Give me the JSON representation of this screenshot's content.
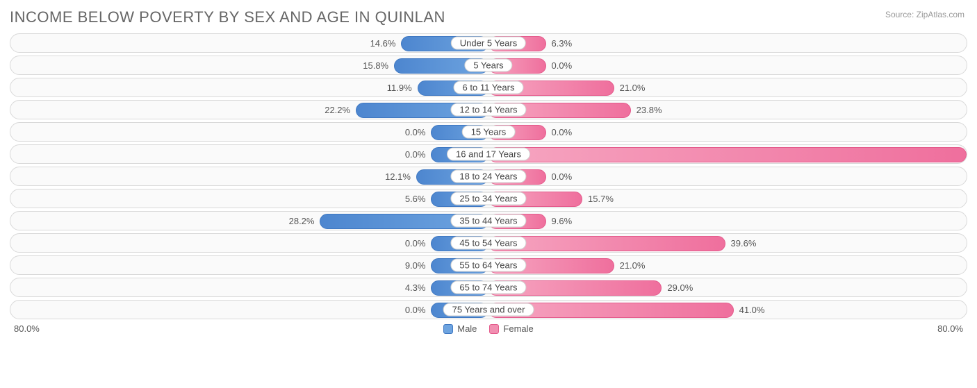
{
  "chart": {
    "title": "INCOME BELOW POVERTY BY SEX AND AGE IN QUINLAN",
    "source": "Source: ZipAtlas.com",
    "type": "diverging-bar",
    "axis_max": 80.0,
    "axis_label_left": "80.0%",
    "axis_label_right": "80.0%",
    "min_bar_pct": 12.0,
    "colors": {
      "male_bar_start": "#6ea4e0",
      "male_bar_end": "#4d86cf",
      "male_border": "#3f78c2",
      "female_bar_start": "#f6a6c1",
      "female_bar_end": "#ef6f9d",
      "female_border": "#e45b8c",
      "track_bg": "#fafafa",
      "track_border": "#d9d9d9",
      "text": "#555555",
      "title_color": "#666666"
    },
    "legend": {
      "male": "Male",
      "female": "Female"
    },
    "categories": [
      {
        "label": "Under 5 Years",
        "male": 14.6,
        "female": 6.3
      },
      {
        "label": "5 Years",
        "male": 15.8,
        "female": 0.0
      },
      {
        "label": "6 to 11 Years",
        "male": 11.9,
        "female": 21.0
      },
      {
        "label": "12 to 14 Years",
        "male": 22.2,
        "female": 23.8
      },
      {
        "label": "15 Years",
        "male": 0.0,
        "female": 0.0
      },
      {
        "label": "16 and 17 Years",
        "male": 0.0,
        "female": 80.0
      },
      {
        "label": "18 to 24 Years",
        "male": 12.1,
        "female": 0.0
      },
      {
        "label": "25 to 34 Years",
        "male": 5.6,
        "female": 15.7
      },
      {
        "label": "35 to 44 Years",
        "male": 28.2,
        "female": 9.6
      },
      {
        "label": "45 to 54 Years",
        "male": 0.0,
        "female": 39.6
      },
      {
        "label": "55 to 64 Years",
        "male": 9.0,
        "female": 21.0
      },
      {
        "label": "65 to 74 Years",
        "male": 4.3,
        "female": 29.0
      },
      {
        "label": "75 Years and over",
        "male": 0.0,
        "female": 41.0
      }
    ]
  }
}
